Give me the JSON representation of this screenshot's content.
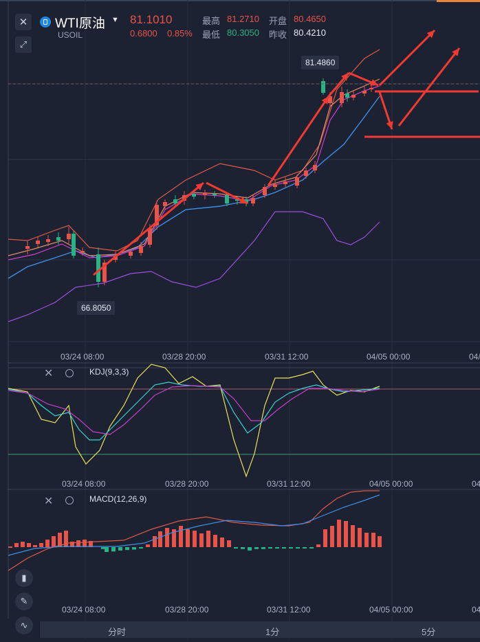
{
  "header": {
    "symbol_name": "WTI原油",
    "symbol_code": "USOIL",
    "last_price": "81.1010",
    "change": "0.6800",
    "change_pct": "0.85%",
    "high_label": "最高",
    "high_value": "81.2710",
    "open_label": "开盘",
    "open_value": "80.4650",
    "low_label": "最低",
    "low_value": "80.3050",
    "prev_close_label": "昨收",
    "prev_close_value": "80.4210"
  },
  "main_chart": {
    "max_label": "81.4860",
    "min_label": "66.8050",
    "dates": [
      "03/24 08:00",
      "03/28 20:00",
      "03/31 12:00",
      "04/05 00:00",
      "04/"
    ]
  },
  "kdj_panel": {
    "title": "KDJ(9,3,3)",
    "dates": [
      "03/24 08:00",
      "03/28 20:00",
      "03/31 12:00",
      "04/05 00:00",
      "04/"
    ]
  },
  "macd_panel": {
    "title": "MACD(12,26,9)",
    "dates": [
      "03/24 08:00",
      "03/28 20:00",
      "03/31 12:00",
      "04/05 00:00",
      "04/"
    ]
  },
  "timeframes": [
    "分时",
    "1分",
    "5分"
  ],
  "colors": {
    "up": "#e8534a",
    "down": "#2bb388",
    "bg": "#1c2231",
    "arrow": "#f03a32"
  },
  "icons": {
    "close": "close-icon",
    "expand": "expand-icon",
    "candle_tool": "candlestick-icon",
    "draw_tool": "pencil-icon",
    "indicator_tool": "indicator-icon"
  }
}
